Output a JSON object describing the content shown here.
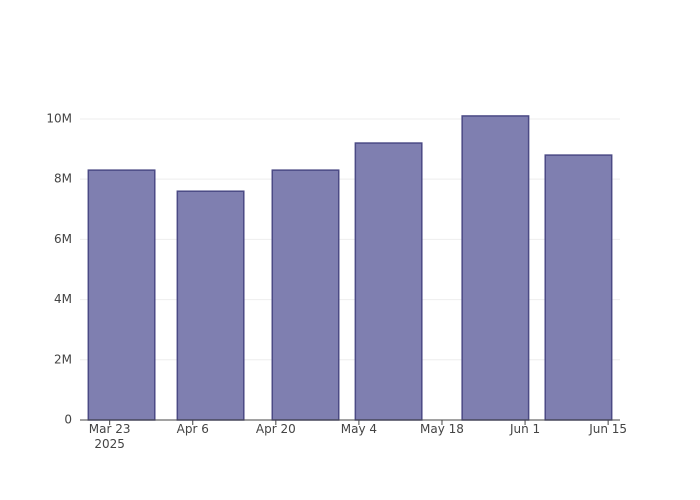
{
  "chart_data": {
    "type": "bar",
    "x": [
      "2025-03-25",
      "2025-04-09",
      "2025-04-25",
      "2025-05-09",
      "2025-05-27",
      "2025-06-10"
    ],
    "values": [
      8300000,
      7600000,
      8300000,
      9200000,
      10100000,
      8800000
    ],
    "color": "#7f7fb0",
    "line_color": "#4b4a85",
    "xlim": [
      "2025-03-18",
      "2025-06-17"
    ],
    "xticks": [
      {
        "value": "2025-03-23",
        "label": "Mar 23\n2025"
      },
      {
        "value": "2025-04-06",
        "label": "Apr 6"
      },
      {
        "value": "2025-04-20",
        "label": "Apr 20"
      },
      {
        "value": "2025-05-04",
        "label": "May 4"
      },
      {
        "value": "2025-05-18",
        "label": "May 18"
      },
      {
        "value": "2025-06-01",
        "label": "Jun 1"
      },
      {
        "value": "2025-06-15",
        "label": "Jun 15"
      }
    ],
    "ylim": [
      0,
      10630000
    ],
    "yticks": [
      0,
      {
        "value": 2000000,
        "label": "2M"
      },
      {
        "value": 4000000,
        "label": "4M"
      },
      {
        "value": 6000000,
        "label": "6M"
      },
      {
        "value": 8000000,
        "label": "8M"
      },
      {
        "value": 10000000,
        "label": "10M"
      }
    ],
    "grid": true
  }
}
